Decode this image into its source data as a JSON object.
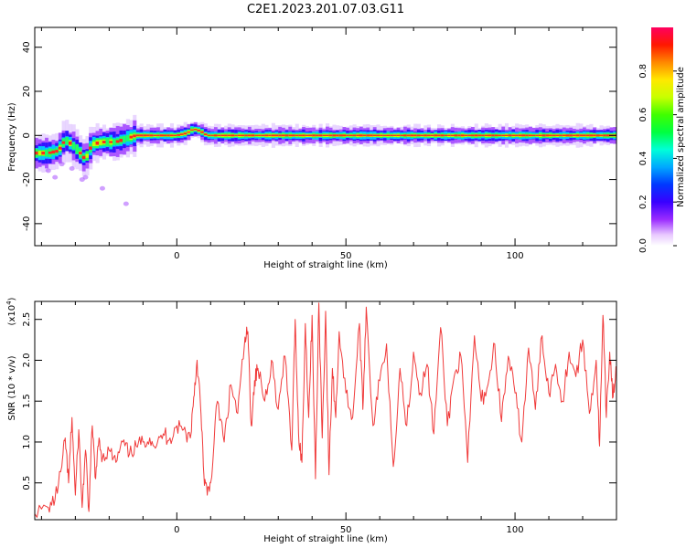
{
  "title": "C2E1.2023.201.07.03.G11",
  "chart_data": [
    {
      "type": "heatmap",
      "xlabel": "Height of straight line (km)",
      "ylabel": "Frequency (Hz)",
      "xlim": [
        -42,
        130
      ],
      "ylim": [
        -50,
        49
      ],
      "x_ticks": [
        0,
        50,
        100
      ],
      "y_ticks": [
        -40,
        -20,
        0,
        20,
        40
      ],
      "colorbar": {
        "label": "Normalized spectral amplitude",
        "range": [
          0,
          1
        ],
        "ticks": [
          "0.0",
          "0.2",
          "0.4",
          "0.6",
          "0.8"
        ]
      },
      "frequency_track": {
        "x": [
          -42,
          -38,
          -35,
          -33,
          -31,
          -29,
          -27,
          -25,
          -22,
          -18,
          -14,
          -12,
          -8,
          0,
          3,
          5,
          7,
          9,
          12,
          20,
          30,
          40,
          50,
          60,
          70,
          80,
          90,
          100,
          110,
          120,
          130
        ],
        "y": [
          -8,
          -8,
          -7,
          -2,
          -4,
          -7,
          -11,
          -4,
          -3,
          -3,
          -1,
          0,
          0,
          0,
          1,
          3,
          2,
          0,
          0,
          0,
          0,
          0,
          0,
          0,
          0,
          0,
          0,
          0,
          0,
          0,
          0
        ]
      }
    },
    {
      "type": "line",
      "xlabel": "Height of straight line (km)",
      "ylabel": "SNR (10 * v/v)",
      "ylabel_exponent": "(x10",
      "ylabel_exponent_power": "4",
      "ylabel_exponent_close": ")",
      "xlim": [
        -42,
        130
      ],
      "ylim": [
        0.05,
        2.72
      ],
      "x_ticks": [
        0,
        50,
        100
      ],
      "y_ticks": [
        "0.5",
        "1.0",
        "1.5",
        "2.0",
        "2.5"
      ],
      "series": [
        {
          "color": "#f03a3a",
          "x": [
            -42,
            -38,
            -36,
            -34,
            -33,
            -32,
            -31,
            -30,
            -29,
            -28,
            -27,
            -26,
            -25,
            -24,
            -23,
            -22,
            -20,
            -18,
            -16,
            -14,
            -12,
            -10,
            -8,
            -6,
            -4,
            -2,
            0,
            2,
            4,
            5,
            6,
            7,
            8,
            9,
            10,
            12,
            14,
            16,
            18,
            20,
            21,
            22,
            23,
            24,
            26,
            28,
            30,
            32,
            34,
            35,
            36,
            37,
            38,
            39,
            40,
            41,
            42,
            43,
            44,
            45,
            46,
            47,
            48,
            50,
            52,
            54,
            55,
            56,
            58,
            60,
            62,
            64,
            66,
            68,
            70,
            72,
            74,
            76,
            78,
            80,
            82,
            84,
            86,
            88,
            90,
            92,
            94,
            96,
            98,
            100,
            102,
            104,
            106,
            108,
            110,
            112,
            114,
            116,
            118,
            120,
            122,
            124,
            125,
            126,
            127,
            128,
            129,
            130
          ],
          "y": [
            0.12,
            0.2,
            0.3,
            0.7,
            1.05,
            0.5,
            1.3,
            0.35,
            1.15,
            0.2,
            0.9,
            0.15,
            1.2,
            0.55,
            1.05,
            0.8,
            0.9,
            0.75,
            1.0,
            0.85,
            0.95,
            1.0,
            1.05,
            0.95,
            1.1,
            1.05,
            1.2,
            1.15,
            1.05,
            1.55,
            2.0,
            1.45,
            0.6,
            0.35,
            0.5,
            1.5,
            1.0,
            1.7,
            1.35,
            2.2,
            2.35,
            1.2,
            1.75,
            1.9,
            1.5,
            2.0,
            1.4,
            2.05,
            0.9,
            2.5,
            1.1,
            0.75,
            2.45,
            1.3,
            2.55,
            0.55,
            2.7,
            1.05,
            2.6,
            0.6,
            1.9,
            1.3,
            2.35,
            1.6,
            1.3,
            2.45,
            1.4,
            2.65,
            1.2,
            1.75,
            2.2,
            0.7,
            1.9,
            1.2,
            2.1,
            1.6,
            1.95,
            1.1,
            2.4,
            1.2,
            1.8,
            2.05,
            0.75,
            2.3,
            1.5,
            1.7,
            2.2,
            1.25,
            2.05,
            1.6,
            1.0,
            2.15,
            1.4,
            2.3,
            1.6,
            1.95,
            1.5,
            2.1,
            1.8,
            2.25,
            1.35,
            2.0,
            0.95,
            2.55,
            1.3,
            2.1,
            1.55,
            1.9
          ]
        }
      ]
    }
  ]
}
